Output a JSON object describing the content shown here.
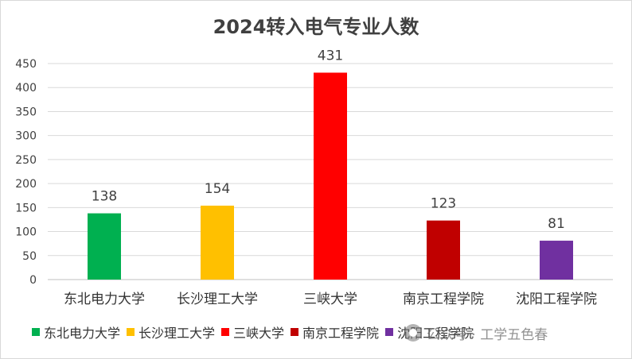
{
  "chart_data": {
    "type": "bar",
    "title": "2024转入电气专业人数",
    "categories": [
      "东北电力大学",
      "长沙理工大学",
      "三峡大学",
      "南京工程学院",
      "沈阳工程学院"
    ],
    "values": [
      138,
      154,
      431,
      123,
      81
    ],
    "colors": [
      "#00b050",
      "#ffc000",
      "#ff0000",
      "#c00000",
      "#7030a0"
    ],
    "ylim": [
      0,
      450
    ],
    "yticks": [
      "0",
      "50",
      "100",
      "150",
      "200",
      "250",
      "300",
      "350",
      "400",
      "450"
    ],
    "grid": true,
    "legend_position": "bottom",
    "data_labels": [
      "138",
      "154",
      "431",
      "123",
      "81"
    ]
  },
  "watermark": {
    "text": "公众号 · 工学五色春"
  }
}
